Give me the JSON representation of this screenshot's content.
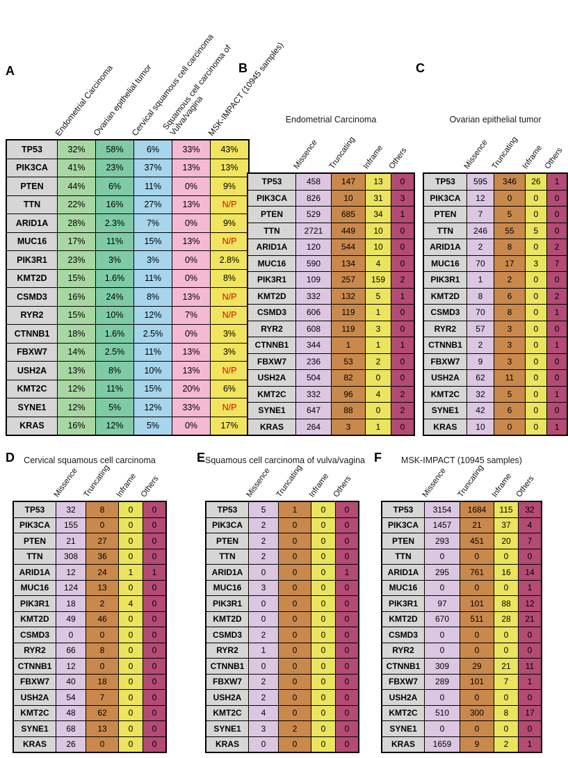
{
  "genes": [
    "TP53",
    "PIK3CA",
    "PTEN",
    "TTN",
    "ARID1A",
    "MUC16",
    "PIK3R1",
    "KMT2D",
    "CSMD3",
    "RYR2",
    "CTNNB1",
    "FBXW7",
    "USH2A",
    "KMT2C",
    "SYNE1",
    "KRAS"
  ],
  "not_profiled_label": "N/P",
  "colors": {
    "background": "#ffffff",
    "border": "#000000",
    "gene_cell": "#d6d6d6",
    "np_text": "#e40000"
  },
  "chart_data": [
    {
      "type": "table",
      "panel": "A",
      "title": "",
      "columns": [
        "Endometrial Carcinoma",
        "Ovarian epithelial tumor",
        "Cervical squamous cell carcinoma",
        "Squamous cell carcinoma of\nVulva/vagina",
        "MSK-IMPACT (10945 samples)"
      ],
      "column_colors": [
        "#a9d7a3",
        "#7ecba6",
        "#a6d5ec",
        "#f4b9d3",
        "#f1e45f"
      ],
      "rows": [
        [
          "32%",
          "58%",
          "6%",
          "33%",
          "43%"
        ],
        [
          "41%",
          "23%",
          "37%",
          "13%",
          "13%"
        ],
        [
          "44%",
          "6%",
          "11%",
          "0%",
          "9%"
        ],
        [
          "22%",
          "16%",
          "27%",
          "13%",
          "N/P"
        ],
        [
          "28%",
          "2.3%",
          "7%",
          "0%",
          "9%"
        ],
        [
          "17%",
          "11%",
          "15%",
          "13%",
          "N/P"
        ],
        [
          "23%",
          "3%",
          "3%",
          "0%",
          "2.8%"
        ],
        [
          "15%",
          "1.6%",
          "11%",
          "0%",
          "8%"
        ],
        [
          "16%",
          "24%",
          "8%",
          "13%",
          "N/P"
        ],
        [
          "15%",
          "10%",
          "12%",
          "7%",
          "N/P"
        ],
        [
          "18%",
          "1.6%",
          "2.5%",
          "0%",
          "3%"
        ],
        [
          "14%",
          "2.5%",
          "11%",
          "13%",
          "3%"
        ],
        [
          "13%",
          "8%",
          "10%",
          "13%",
          "N/P"
        ],
        [
          "12%",
          "11%",
          "15%",
          "20%",
          "6%"
        ],
        [
          "12%",
          "5%",
          "12%",
          "33%",
          "N/P"
        ],
        [
          "16%",
          "12%",
          "5%",
          "0%",
          "17%"
        ]
      ]
    },
    {
      "type": "table",
      "panel": "B",
      "title": "Endometrial Carcinoma",
      "columns": [
        "Missence",
        "Truncating",
        "Inframe",
        "Others"
      ],
      "column_colors": [
        "#dcc7e2",
        "#c9894d",
        "#eae45f",
        "#b34b74"
      ],
      "rows": [
        [
          458,
          147,
          13,
          0
        ],
        [
          826,
          10,
          31,
          3
        ],
        [
          529,
          685,
          34,
          1
        ],
        [
          2721,
          449,
          10,
          0
        ],
        [
          120,
          544,
          10,
          0
        ],
        [
          590,
          134,
          4,
          0
        ],
        [
          109,
          257,
          159,
          2
        ],
        [
          332,
          132,
          5,
          1
        ],
        [
          606,
          119,
          1,
          0
        ],
        [
          608,
          119,
          3,
          0
        ],
        [
          344,
          1,
          1,
          1
        ],
        [
          236,
          53,
          2,
          0
        ],
        [
          504,
          82,
          0,
          0
        ],
        [
          332,
          96,
          4,
          2
        ],
        [
          647,
          88,
          0,
          2
        ],
        [
          264,
          3,
          1,
          0
        ]
      ]
    },
    {
      "type": "table",
      "panel": "C",
      "title": "Ovarian epithelial tumor",
      "columns": [
        "Missence",
        "Truncating",
        "Inframe",
        "Others"
      ],
      "column_colors": [
        "#dcc7e2",
        "#c9894d",
        "#eae45f",
        "#b34b74"
      ],
      "rows": [
        [
          595,
          346,
          26,
          1
        ],
        [
          12,
          0,
          0,
          0
        ],
        [
          7,
          5,
          0,
          0
        ],
        [
          246,
          55,
          5,
          0
        ],
        [
          2,
          8,
          0,
          2
        ],
        [
          70,
          17,
          3,
          7
        ],
        [
          1,
          2,
          0,
          0
        ],
        [
          8,
          6,
          0,
          2
        ],
        [
          70,
          8,
          0,
          1
        ],
        [
          57,
          3,
          0,
          0
        ],
        [
          2,
          3,
          0,
          1
        ],
        [
          9,
          3,
          0,
          0
        ],
        [
          62,
          11,
          0,
          0
        ],
        [
          32,
          5,
          0,
          1
        ],
        [
          42,
          6,
          0,
          0
        ],
        [
          10,
          0,
          0,
          1
        ]
      ]
    },
    {
      "type": "table",
      "panel": "D",
      "title": "Cervical squamous cell carcinoma",
      "columns": [
        "Missence",
        "Truncating",
        "Inframe",
        "Others"
      ],
      "column_colors": [
        "#dcc7e2",
        "#c9894d",
        "#eae45f",
        "#b34b74"
      ],
      "rows": [
        [
          32,
          8,
          0,
          0
        ],
        [
          155,
          0,
          0,
          0
        ],
        [
          21,
          27,
          0,
          0
        ],
        [
          308,
          36,
          0,
          0
        ],
        [
          12,
          24,
          1,
          1
        ],
        [
          124,
          13,
          0,
          0
        ],
        [
          18,
          2,
          4,
          0
        ],
        [
          49,
          46,
          0,
          0
        ],
        [
          0,
          0,
          0,
          0
        ],
        [
          66,
          8,
          0,
          0
        ],
        [
          12,
          0,
          0,
          0
        ],
        [
          40,
          18,
          0,
          0
        ],
        [
          54,
          7,
          0,
          0
        ],
        [
          48,
          62,
          0,
          0
        ],
        [
          68,
          13,
          0,
          0
        ],
        [
          26,
          0,
          0,
          0
        ]
      ]
    },
    {
      "type": "table",
      "panel": "E",
      "title": "Squamous cell carcinoma of vulva/vagina",
      "columns": [
        "Missence",
        "Truncating",
        "Inframe",
        "Others"
      ],
      "column_colors": [
        "#dcc7e2",
        "#c9894d",
        "#eae45f",
        "#b34b74"
      ],
      "rows": [
        [
          5,
          1,
          0,
          0
        ],
        [
          2,
          0,
          0,
          0
        ],
        [
          2,
          0,
          0,
          0
        ],
        [
          2,
          0,
          0,
          0
        ],
        [
          0,
          0,
          0,
          1
        ],
        [
          3,
          0,
          0,
          0
        ],
        [
          0,
          0,
          0,
          0
        ],
        [
          0,
          0,
          0,
          0
        ],
        [
          2,
          0,
          0,
          0
        ],
        [
          1,
          0,
          0,
          0
        ],
        [
          0,
          0,
          0,
          0
        ],
        [
          2,
          0,
          0,
          0
        ],
        [
          2,
          0,
          0,
          0
        ],
        [
          4,
          0,
          0,
          0
        ],
        [
          3,
          2,
          0,
          0
        ],
        [
          0,
          0,
          0,
          0
        ]
      ]
    },
    {
      "type": "table",
      "panel": "F",
      "title": "MSK-IMPACT (10945 samples)",
      "columns": [
        "Missence",
        "Truncating",
        "Inframe",
        "Others"
      ],
      "column_colors": [
        "#dcc7e2",
        "#c9894d",
        "#eae45f",
        "#b34b74"
      ],
      "rows": [
        [
          3154,
          1684,
          115,
          32
        ],
        [
          1457,
          21,
          37,
          4
        ],
        [
          293,
          451,
          20,
          7
        ],
        [
          0,
          0,
          0,
          0
        ],
        [
          295,
          761,
          16,
          14
        ],
        [
          0,
          0,
          0,
          1
        ],
        [
          97,
          101,
          88,
          12
        ],
        [
          670,
          511,
          28,
          21
        ],
        [
          0,
          0,
          0,
          0
        ],
        [
          0,
          0,
          0,
          0
        ],
        [
          309,
          29,
          21,
          11
        ],
        [
          289,
          101,
          7,
          1
        ],
        [
          0,
          0,
          0,
          0
        ],
        [
          510,
          300,
          8,
          17
        ],
        [
          0,
          0,
          0,
          0
        ],
        [
          1659,
          9,
          2,
          1
        ]
      ]
    }
  ]
}
